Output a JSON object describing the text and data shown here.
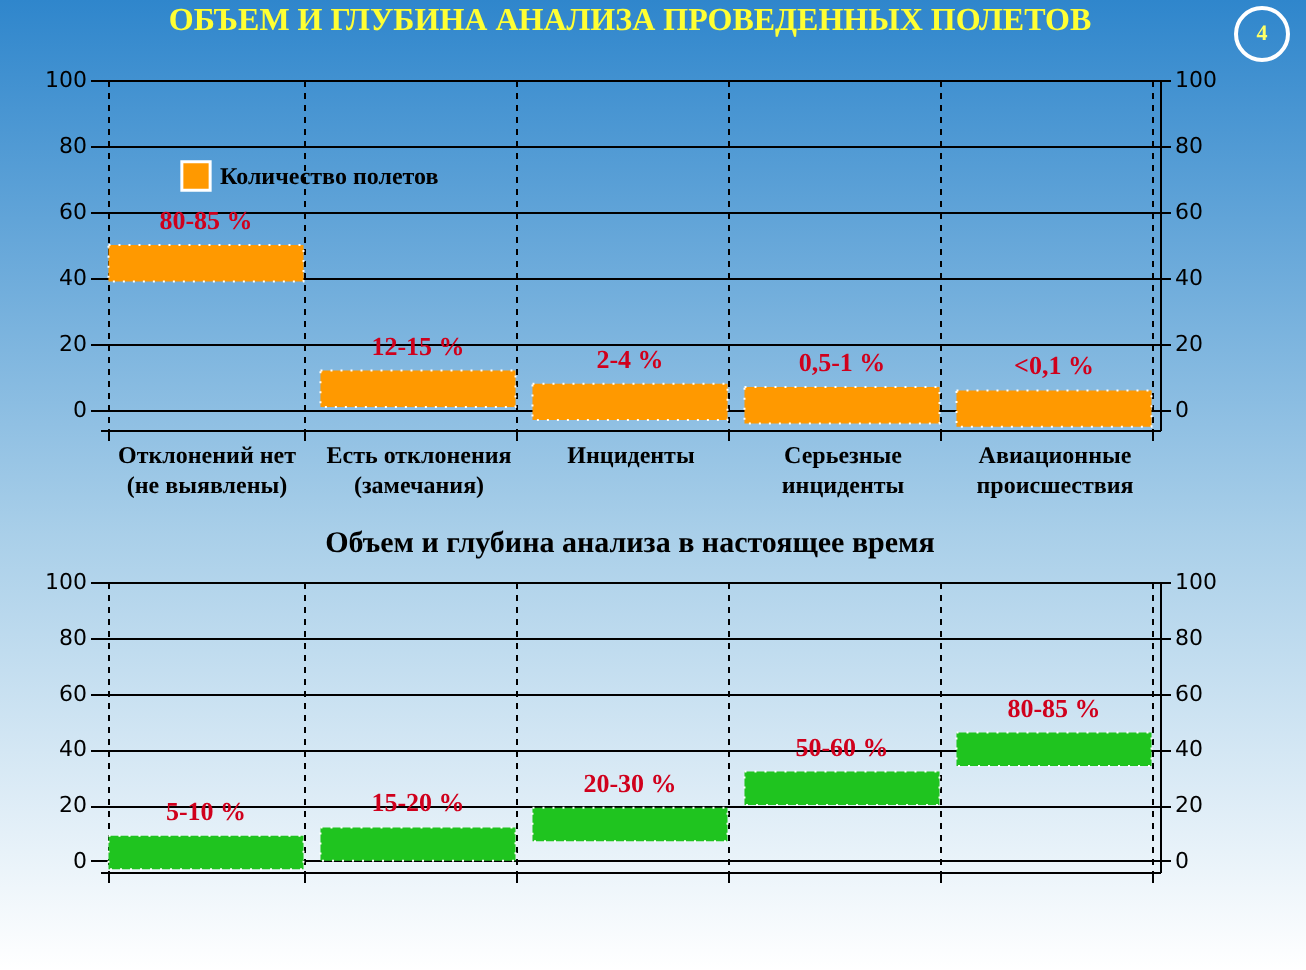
{
  "chart_data": [
    {
      "type": "bar",
      "title": "ОБЪЕМ И ГЛУБИНА АНАЛИЗА  ПРОВЕДЕННЫХ ПОЛЕТОВ",
      "categories": [
        "Отклонений нет (не выявлены)",
        "Есть отклонения (замечания)",
        "Инциденты",
        "Серьезные инциденты",
        "Авиационные происшествия"
      ],
      "series": [
        {
          "name": "Количество полетов",
          "color": "#ff9900",
          "values": [
            11,
            11,
            11,
            11,
            11
          ],
          "base": [
            39,
            1,
            -3,
            -4,
            -5
          ]
        }
      ],
      "ylim": [
        -6,
        100
      ],
      "yticks": [
        0,
        20,
        40,
        60,
        80,
        100
      ],
      "y2lim": [
        -6,
        100
      ],
      "y2ticks": [
        0,
        20,
        40,
        60,
        80,
        100
      ],
      "grid": true,
      "legend": "top left",
      "annotations": [
        "80-85 %",
        "12-15 %",
        "2-4 %",
        "0,5-1 %",
        "<0,1 %",
        "4"
      ]
    },
    {
      "type": "bar",
      "title": "Объем и глубина анализа в настоящее время",
      "categories": [
        null,
        null,
        null,
        null,
        null
      ],
      "series": [
        {
          "color": "#1fc41f",
          "values": [
            12,
            12,
            12,
            12,
            12
          ],
          "base": [
            -3,
            0,
            7,
            20,
            34
          ]
        }
      ],
      "ylim": [
        -4,
        100
      ],
      "yticks": [
        0,
        20,
        40,
        60,
        80,
        100
      ],
      "y2lim": [
        -4,
        100
      ],
      "y2ticks": [
        0,
        20,
        40,
        60,
        80,
        100
      ],
      "grid": true,
      "annotations": [
        "5-10 %",
        "15-20 %",
        "20-30 %",
        "50-60 %",
        "80-85 %"
      ]
    }
  ]
}
